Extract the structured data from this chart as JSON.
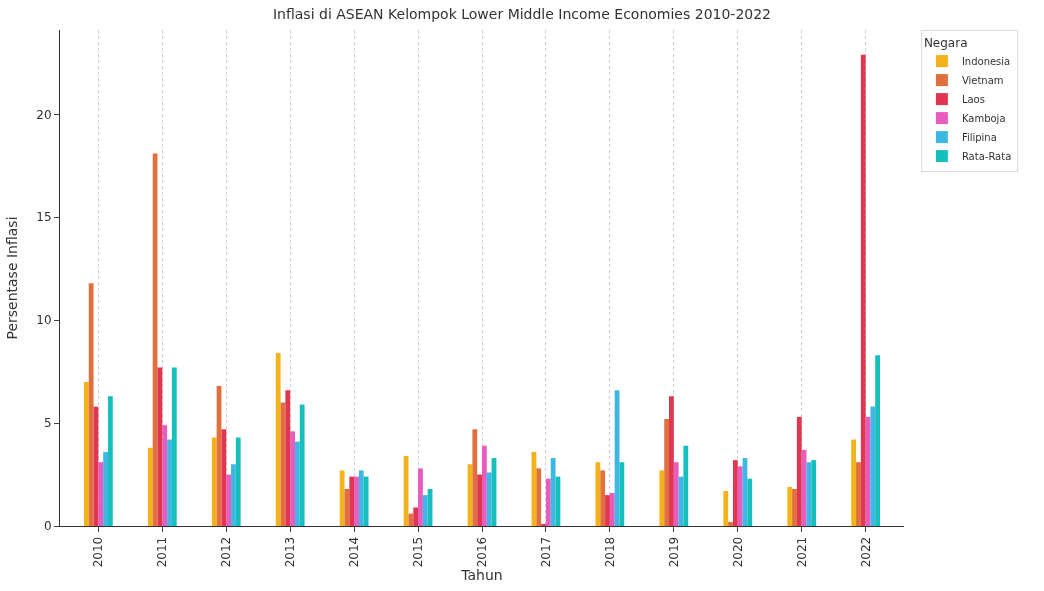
{
  "chart_data": {
    "type": "bar",
    "title": "Inflasi di ASEAN Kelompok Lower Middle Income Economies 2010-2022",
    "xlabel": "Tahun",
    "ylabel": "Persentase Inflasi",
    "legend_title": "Negara",
    "categories": [
      "2010",
      "2011",
      "2012",
      "2013",
      "2014",
      "2015",
      "2016",
      "2017",
      "2018",
      "2019",
      "2020",
      "2021",
      "2022"
    ],
    "series": [
      {
        "name": "Indonesia",
        "color": "#f4b21c",
        "values": [
          7.0,
          3.8,
          4.3,
          8.4,
          2.7,
          3.4,
          3.0,
          3.6,
          3.1,
          2.7,
          1.7,
          1.9,
          4.2
        ]
      },
      {
        "name": "Vietnam",
        "color": "#e0703e",
        "values": [
          11.8,
          18.1,
          6.8,
          6.0,
          1.8,
          0.6,
          4.7,
          2.8,
          2.7,
          5.2,
          0.2,
          1.8,
          3.1
        ]
      },
      {
        "name": "Laos",
        "color": "#e0364f",
        "values": [
          5.8,
          7.7,
          4.7,
          6.6,
          2.4,
          0.9,
          2.5,
          0.1,
          1.5,
          6.3,
          3.2,
          5.3,
          22.9
        ]
      },
      {
        "name": "Kamboja",
        "color": "#e85bbf",
        "values": [
          3.1,
          4.9,
          2.5,
          4.6,
          2.4,
          2.8,
          3.9,
          2.3,
          1.6,
          3.1,
          2.9,
          3.7,
          5.3
        ]
      },
      {
        "name": "Filipina",
        "color": "#3db7e4",
        "values": [
          3.6,
          4.2,
          3.0,
          4.1,
          2.7,
          1.5,
          2.6,
          3.3,
          6.6,
          2.4,
          3.3,
          3.1,
          5.8
        ]
      },
      {
        "name": "Rata-Rata",
        "color": "#17bebb",
        "values": [
          6.3,
          7.7,
          4.3,
          5.9,
          2.4,
          1.8,
          3.3,
          2.4,
          3.1,
          3.9,
          2.3,
          3.2,
          8.3
        ]
      }
    ],
    "ylim": [
      0,
      24.1
    ],
    "yticks": [
      0,
      5,
      10,
      15,
      20
    ],
    "grid": "x",
    "legend": "top right"
  }
}
